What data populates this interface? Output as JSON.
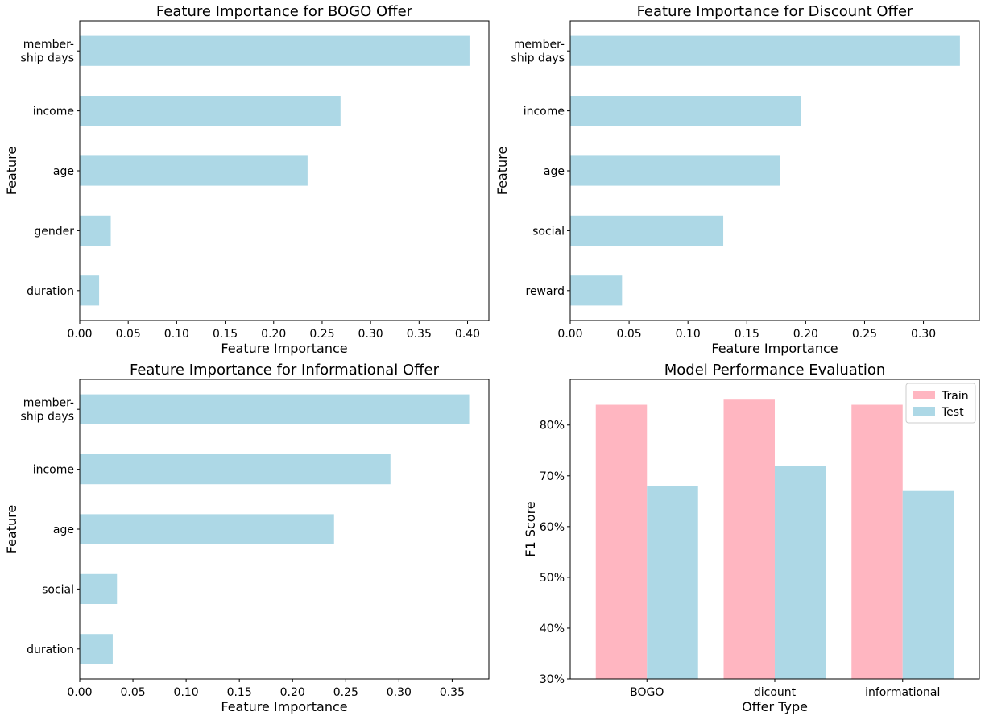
{
  "colors": {
    "bar": "#add8e6",
    "train": "#ffb6c1",
    "test": "#add8e6",
    "axis": "#000000"
  },
  "chart_data": [
    {
      "type": "bar",
      "orientation": "horizontal",
      "title": "Feature Importance for BOGO Offer",
      "xlabel": "Feature Importance",
      "ylabel": "Feature",
      "categories": [
        [
          "member-",
          "ship days"
        ],
        [
          "income"
        ],
        [
          "age"
        ],
        [
          "gender"
        ],
        [
          "duration"
        ]
      ],
      "values": [
        0.402,
        0.269,
        0.235,
        0.032,
        0.02
      ],
      "xlim": [
        0,
        0.422
      ],
      "xticks": [
        0.0,
        0.05,
        0.1,
        0.15,
        0.2,
        0.25,
        0.3,
        0.35,
        0.4
      ],
      "xtick_labels": [
        "0.00",
        "0.05",
        "0.10",
        "0.15",
        "0.20",
        "0.25",
        "0.30",
        "0.35",
        "0.40"
      ],
      "grid": false
    },
    {
      "type": "bar",
      "orientation": "horizontal",
      "title": "Feature Importance for Discount Offer",
      "xlabel": "Feature Importance",
      "ylabel": "Feature",
      "categories": [
        [
          "member-",
          "ship days"
        ],
        [
          "income"
        ],
        [
          "age"
        ],
        [
          "social"
        ],
        [
          "reward"
        ]
      ],
      "values": [
        0.331,
        0.196,
        0.178,
        0.13,
        0.044
      ],
      "xlim": [
        0,
        0.3475
      ],
      "xticks": [
        0.0,
        0.05,
        0.1,
        0.15,
        0.2,
        0.25,
        0.3
      ],
      "xtick_labels": [
        "0.00",
        "0.05",
        "0.10",
        "0.15",
        "0.20",
        "0.25",
        "0.30"
      ],
      "grid": false
    },
    {
      "type": "bar",
      "orientation": "horizontal",
      "title": "Feature Importance for Informational Offer",
      "xlabel": "Feature Importance",
      "ylabel": "Feature",
      "categories": [
        [
          "member-",
          "ship days"
        ],
        [
          "income"
        ],
        [
          "age"
        ],
        [
          "social"
        ],
        [
          "duration"
        ]
      ],
      "values": [
        0.366,
        0.292,
        0.239,
        0.035,
        0.031
      ],
      "xlim": [
        0,
        0.3845
      ],
      "xticks": [
        0.0,
        0.05,
        0.1,
        0.15,
        0.2,
        0.25,
        0.3,
        0.35
      ],
      "xtick_labels": [
        "0.00",
        "0.05",
        "0.10",
        "0.15",
        "0.20",
        "0.25",
        "0.30",
        "0.35"
      ],
      "grid": false
    },
    {
      "type": "bar",
      "orientation": "vertical",
      "title": "Model Performance Evaluation",
      "xlabel": "Offer Type",
      "ylabel": "F1 Score",
      "categories": [
        "BOGO",
        "dicount",
        "informational"
      ],
      "series": [
        {
          "name": "Train",
          "values": [
            0.84,
            0.85,
            0.84
          ]
        },
        {
          "name": "Test",
          "values": [
            0.68,
            0.72,
            0.67
          ]
        }
      ],
      "ylim": [
        0.3,
        0.89
      ],
      "yticks": [
        0.3,
        0.4,
        0.5,
        0.6,
        0.7,
        0.8
      ],
      "ytick_labels": [
        "30%",
        "40%",
        "50%",
        "60%",
        "70%",
        "80%"
      ],
      "legend": "top-right",
      "grid": false
    }
  ]
}
